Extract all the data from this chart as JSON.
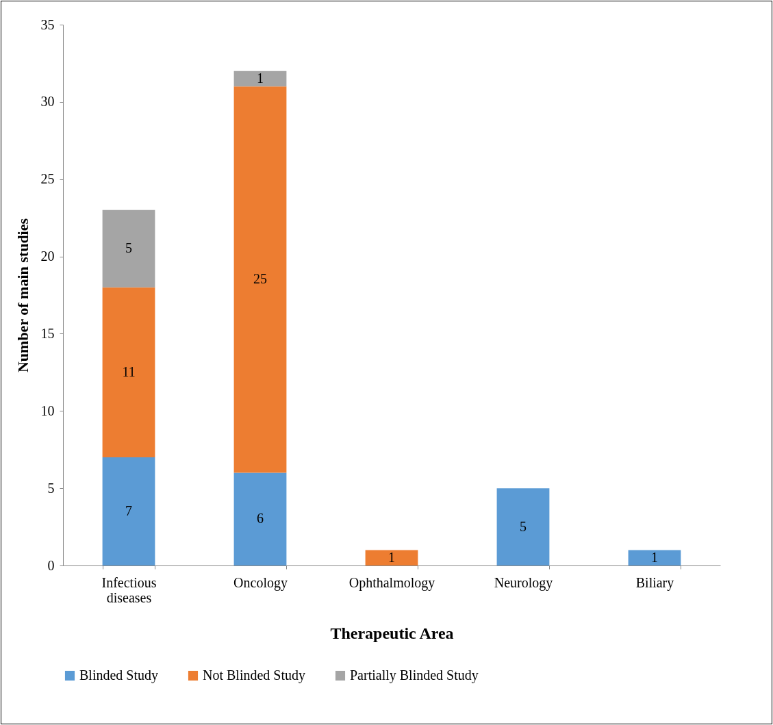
{
  "chart_data": {
    "type": "bar",
    "stacked": true,
    "xlabel": "Therapeutic Area",
    "ylabel": "Number of main studies",
    "categories": [
      "Infectious diseases",
      "Oncology",
      "Ophthalmology",
      "Neurology",
      "Biliary"
    ],
    "series": [
      {
        "name": "Blinded Study",
        "color": "#5b9bd5",
        "values": [
          7,
          6,
          null,
          5,
          1
        ]
      },
      {
        "name": "Not Blinded Study",
        "color": "#ed7d31",
        "values": [
          11,
          25,
          1,
          null,
          null
        ]
      },
      {
        "name": "Partially Blinded Study",
        "color": "#a5a5a5",
        "values": [
          5,
          1,
          null,
          null,
          null
        ]
      }
    ],
    "ylim": [
      0,
      35
    ],
    "yticks": [
      0,
      5,
      10,
      15,
      20,
      25,
      30,
      35
    ],
    "grid": false,
    "legend": "bottom",
    "data_labels": true
  }
}
